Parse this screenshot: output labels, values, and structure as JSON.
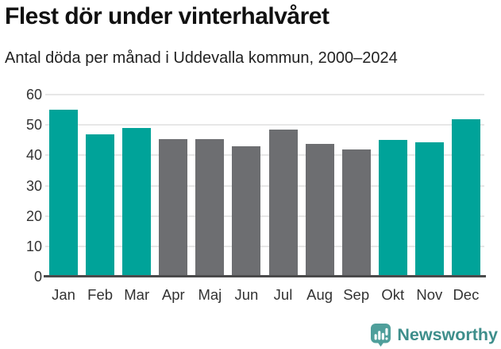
{
  "header": {
    "title": "Flest dör under vinterhalvåret",
    "subtitle": "Antal döda per månad i Uddevalla kommun, 2000–2024"
  },
  "chart_data": {
    "type": "bar",
    "title": "Flest dör under vinterhalvåret",
    "subtitle": "Antal döda per månad i Uddevalla kommun, 2000–2024",
    "categories": [
      "Jan",
      "Feb",
      "Mar",
      "Apr",
      "Maj",
      "Jun",
      "Jul",
      "Aug",
      "Sep",
      "Okt",
      "Nov",
      "Dec"
    ],
    "values": [
      54.9,
      46.9,
      49.1,
      45.4,
      45.4,
      43.1,
      48.5,
      43.7,
      41.8,
      45.1,
      44.3,
      52.0
    ],
    "highlighted": [
      true,
      true,
      true,
      false,
      false,
      false,
      false,
      false,
      false,
      true,
      true,
      true
    ],
    "xlabel": "",
    "ylabel": "",
    "ylim": [
      0,
      60
    ],
    "yticks": [
      0,
      10,
      20,
      30,
      40,
      50,
      60
    ],
    "grid": true,
    "legend": "none",
    "colors": {
      "highlight_bar": "#00a399",
      "regular_bar": "#6d6e71",
      "gridline": "#e7e7e7",
      "axis_line": "#4a4a4b",
      "tick_text": "#333333"
    }
  },
  "footer": {
    "brand": "Newsworthy",
    "brand_color": "#3e8e8b",
    "icon": "newsworthy-chart-bubble-icon",
    "icon_color": "#4f9f9b"
  }
}
